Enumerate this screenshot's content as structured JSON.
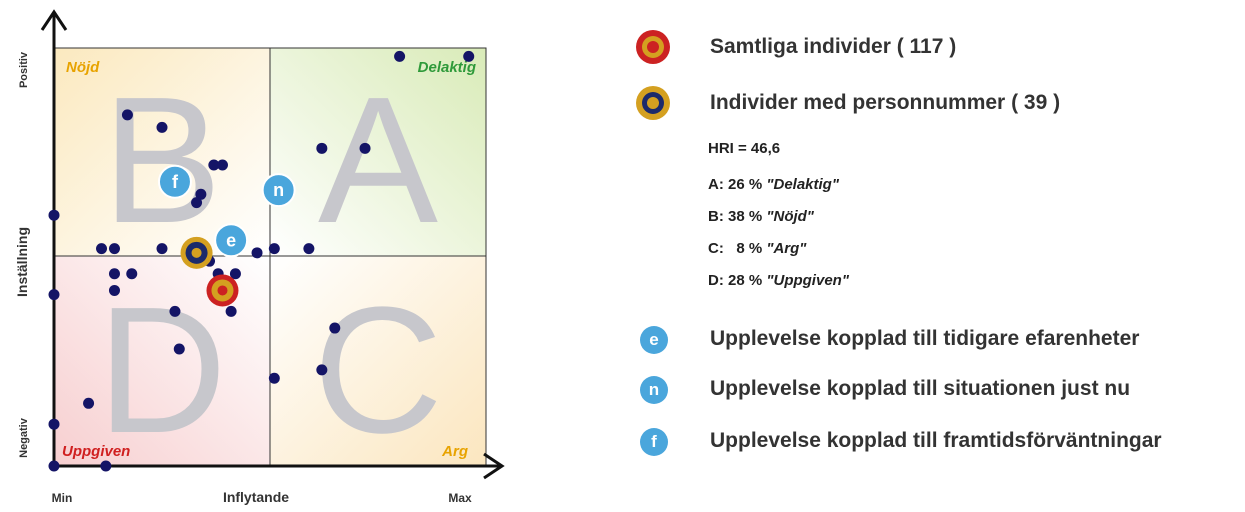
{
  "chart_data": {
    "type": "scatter",
    "xlabel": "Inflytande",
    "ylabel": "Inställning",
    "x_min_label": "Min",
    "x_max_label": "Max",
    "y_max_label": "Positiv",
    "y_min_label": "Negativ",
    "xlim": [
      0,
      100
    ],
    "ylim": [
      0,
      100
    ],
    "quadrants": {
      "top_left": {
        "letter": "B",
        "name": "Nöjd",
        "color": "#e8a300"
      },
      "top_right": {
        "letter": "A",
        "name": "Delaktig",
        "color": "#2f9a3a"
      },
      "bottom_left": {
        "letter": "D",
        "name": "Uppgiven",
        "color": "#d02020"
      },
      "bottom_right": {
        "letter": "C",
        "name": "Arg",
        "color": "#e8a300"
      }
    },
    "points": [
      {
        "x": 80,
        "y": 98
      },
      {
        "x": 96,
        "y": 98
      },
      {
        "x": 17,
        "y": 84
      },
      {
        "x": 25,
        "y": 81
      },
      {
        "x": 0,
        "y": 60
      },
      {
        "x": 37,
        "y": 72
      },
      {
        "x": 39,
        "y": 72
      },
      {
        "x": 34,
        "y": 65
      },
      {
        "x": 33,
        "y": 63
      },
      {
        "x": 62,
        "y": 76
      },
      {
        "x": 72,
        "y": 76
      },
      {
        "x": 11,
        "y": 52
      },
      {
        "x": 14,
        "y": 52
      },
      {
        "x": 25,
        "y": 52
      },
      {
        "x": 36,
        "y": 49
      },
      {
        "x": 47,
        "y": 51
      },
      {
        "x": 51,
        "y": 52
      },
      {
        "x": 59,
        "y": 52
      },
      {
        "x": 0,
        "y": 41
      },
      {
        "x": 14,
        "y": 46
      },
      {
        "x": 18,
        "y": 46
      },
      {
        "x": 14,
        "y": 42
      },
      {
        "x": 38,
        "y": 46
      },
      {
        "x": 42,
        "y": 46
      },
      {
        "x": 28,
        "y": 37
      },
      {
        "x": 41,
        "y": 37
      },
      {
        "x": 29,
        "y": 28
      },
      {
        "x": 65,
        "y": 33
      },
      {
        "x": 62,
        "y": 23
      },
      {
        "x": 51,
        "y": 21
      },
      {
        "x": 8,
        "y": 15
      },
      {
        "x": 0,
        "y": 10
      },
      {
        "x": 0,
        "y": 0
      },
      {
        "x": 12,
        "y": 0
      }
    ],
    "markers": [
      {
        "id": "f",
        "x": 28,
        "y": 68
      },
      {
        "id": "n",
        "x": 52,
        "y": 66
      },
      {
        "id": "e",
        "x": 41,
        "y": 54
      },
      {
        "id": "personnummer",
        "x": 33,
        "y": 51
      },
      {
        "id": "samtliga",
        "x": 39,
        "y": 42
      }
    ],
    "colors": {
      "point": "#141466",
      "marker_light": "#4aa6dc",
      "target_red": "#cc2222",
      "target_gold": "#d4a020",
      "target_dark": "#1b2a6b"
    }
  },
  "legend": {
    "samtliga": "Samtliga individer ( 117 )",
    "personnummer": "Individer med personnummer ( 39 )",
    "hri": "HRI = 46,6",
    "quadrant_stats": [
      {
        "label": "A:",
        "pct": "26 %",
        "name": "\"Delaktig\""
      },
      {
        "label": "B:",
        "pct": "38 %",
        "name": "\"Nöjd\""
      },
      {
        "label": "C:",
        "pct": "  8 %",
        "name": "\"Arg\""
      },
      {
        "label": "D:",
        "pct": "28 %",
        "name": "\"Uppgiven\""
      }
    ],
    "markers": [
      {
        "id": "e",
        "text": "Upplevelse kopplad till tidigare efarenheter"
      },
      {
        "id": "n",
        "text": "Upplevelse kopplad till situationen just nu"
      },
      {
        "id": "f",
        "text": "Upplevelse kopplad till framtidsförväntningar"
      }
    ]
  }
}
